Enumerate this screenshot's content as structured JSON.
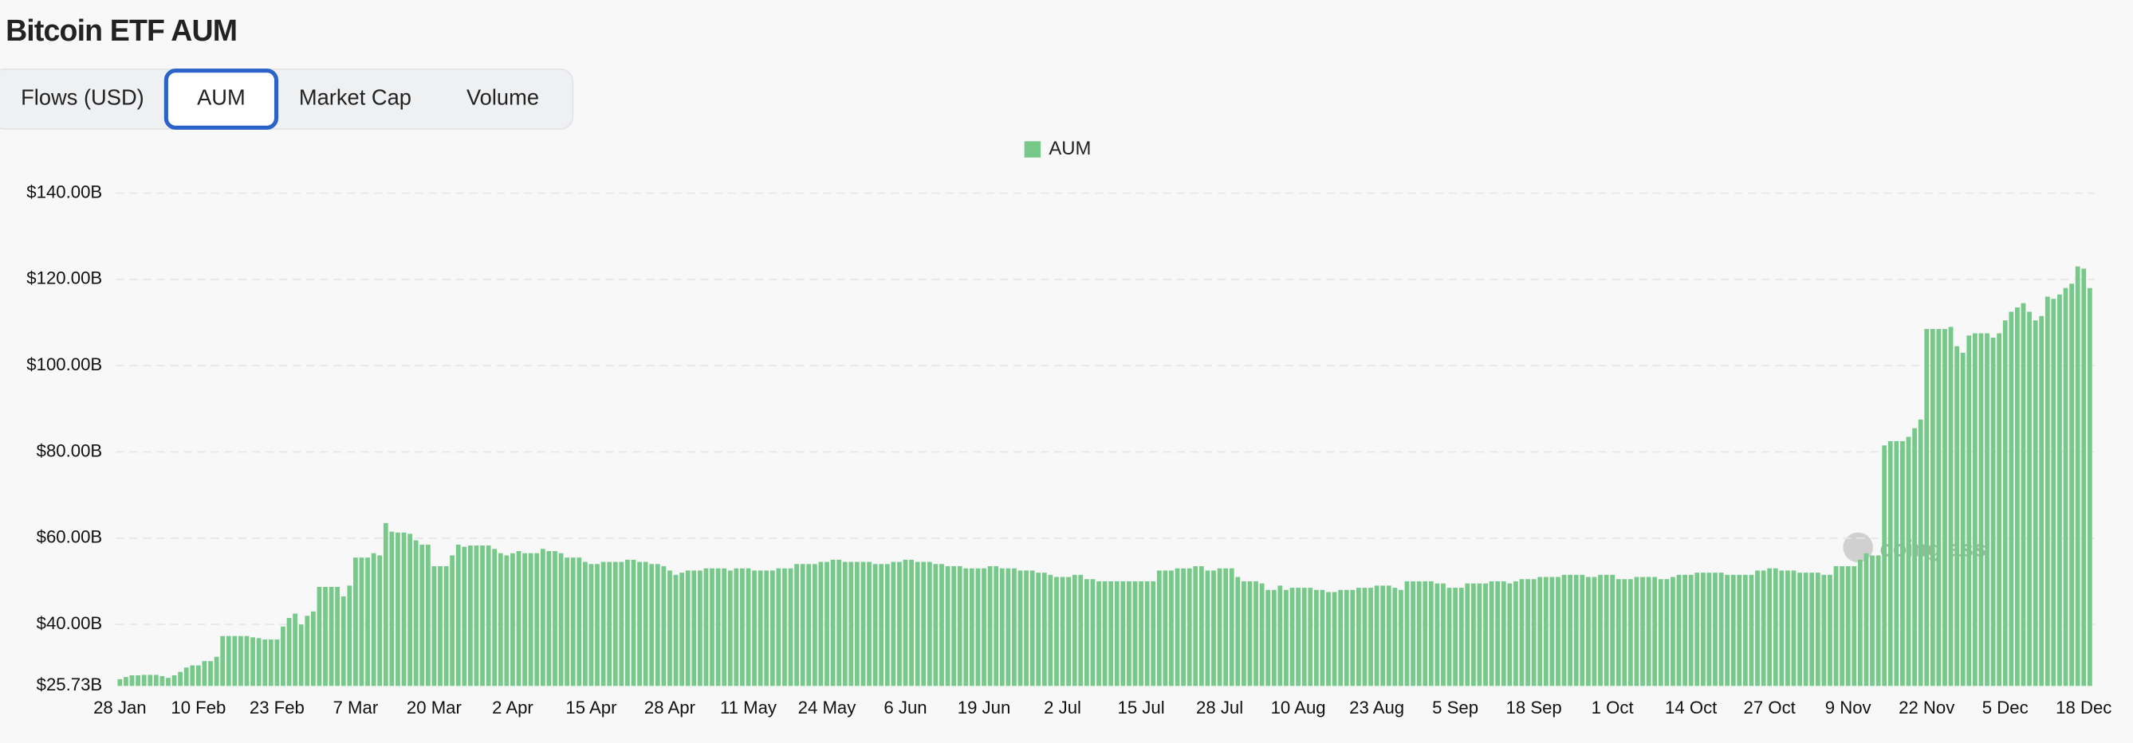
{
  "header": {
    "title": "Bitcoin ETF AUM"
  },
  "tabs": {
    "items": [
      "Flows (USD)",
      "AUM",
      "Market Cap",
      "Volume"
    ],
    "selected": 1
  },
  "chart_data": {
    "type": "bar",
    "watermark": "coinglass",
    "categories": [
      "28 Jan",
      null,
      null,
      null,
      null,
      null,
      null,
      null,
      null,
      null,
      null,
      null,
      null,
      "10 Feb",
      null,
      null,
      null,
      null,
      null,
      null,
      null,
      null,
      null,
      null,
      null,
      null,
      "23 Feb",
      null,
      null,
      null,
      null,
      null,
      null,
      null,
      null,
      null,
      null,
      null,
      null,
      "7 Mar",
      null,
      null,
      null,
      null,
      null,
      null,
      null,
      null,
      null,
      null,
      null,
      null,
      "20 Mar",
      null,
      null,
      null,
      null,
      null,
      null,
      null,
      null,
      null,
      null,
      null,
      null,
      "2 Apr",
      null,
      null,
      null,
      null,
      null,
      null,
      null,
      null,
      null,
      null,
      null,
      null,
      "15 Apr",
      null,
      null,
      null,
      null,
      null,
      null,
      null,
      null,
      null,
      null,
      null,
      null,
      "28 Apr",
      null,
      null,
      null,
      null,
      null,
      null,
      null,
      null,
      null,
      null,
      null,
      null,
      "11 May",
      null,
      null,
      null,
      null,
      null,
      null,
      null,
      null,
      null,
      null,
      null,
      null,
      "24 May",
      null,
      null,
      null,
      null,
      null,
      null,
      null,
      null,
      null,
      null,
      null,
      null,
      "6 Jun",
      null,
      null,
      null,
      null,
      null,
      null,
      null,
      null,
      null,
      null,
      null,
      null,
      "19 Jun",
      null,
      null,
      null,
      null,
      null,
      null,
      null,
      null,
      null,
      null,
      null,
      null,
      "2 Jul",
      null,
      null,
      null,
      null,
      null,
      null,
      null,
      null,
      null,
      null,
      null,
      null,
      "15 Jul",
      null,
      null,
      null,
      null,
      null,
      null,
      null,
      null,
      null,
      null,
      null,
      null,
      "28 Jul",
      null,
      null,
      null,
      null,
      null,
      null,
      null,
      null,
      null,
      null,
      null,
      null,
      "10 Aug",
      null,
      null,
      null,
      null,
      null,
      null,
      null,
      null,
      null,
      null,
      null,
      null,
      "23 Aug",
      null,
      null,
      null,
      null,
      null,
      null,
      null,
      null,
      null,
      null,
      null,
      null,
      "5 Sep",
      null,
      null,
      null,
      null,
      null,
      null,
      null,
      null,
      null,
      null,
      null,
      null,
      "18 Sep",
      null,
      null,
      null,
      null,
      null,
      null,
      null,
      null,
      null,
      null,
      null,
      null,
      "1 Oct",
      null,
      null,
      null,
      null,
      null,
      null,
      null,
      null,
      null,
      null,
      null,
      null,
      "14 Oct",
      null,
      null,
      null,
      null,
      null,
      null,
      null,
      null,
      null,
      null,
      null,
      null,
      "27 Oct",
      null,
      null,
      null,
      null,
      null,
      null,
      null,
      null,
      null,
      null,
      null,
      null,
      "9 Nov",
      null,
      null,
      null,
      null,
      null,
      null,
      null,
      null,
      null,
      null,
      null,
      null,
      "22 Nov",
      null,
      null,
      null,
      null,
      null,
      null,
      null,
      null,
      null,
      null,
      null,
      null,
      "5 Dec",
      null,
      null,
      null,
      null,
      null,
      null,
      null,
      null,
      null,
      null,
      null,
      null,
      "18 Dec",
      null
    ],
    "series": [
      {
        "name": "AUM",
        "color": "#77c98a",
        "values": [
          27.3,
          27.8,
          28.2,
          28.2,
          28.3,
          28.3,
          28.3,
          28.0,
          27.6,
          28.2,
          29.0,
          30.0,
          30.5,
          30.5,
          31.5,
          31.5,
          32.5,
          37.3,
          37.3,
          37.3,
          37.3,
          37.3,
          37.0,
          36.8,
          36.5,
          36.5,
          36.5,
          39.5,
          41.5,
          42.5,
          40.0,
          42.0,
          43.0,
          48.7,
          48.7,
          48.7,
          48.7,
          46.5,
          49.0,
          55.5,
          55.5,
          55.5,
          56.5,
          56.0,
          63.5,
          61.5,
          61.3,
          61.3,
          61.0,
          59.5,
          58.5,
          58.5,
          53.5,
          53.5,
          53.5,
          56.0,
          58.5,
          58.0,
          58.3,
          58.3,
          58.3,
          58.3,
          57.5,
          56.5,
          56.0,
          56.5,
          57.0,
          56.5,
          56.5,
          56.5,
          57.5,
          57.0,
          57.0,
          56.5,
          55.5,
          55.5,
          55.5,
          54.5,
          54.0,
          54.0,
          54.5,
          54.5,
          54.5,
          54.5,
          55.0,
          55.0,
          54.5,
          54.5,
          54.0,
          54.0,
          53.5,
          52.5,
          51.5,
          52.0,
          52.5,
          52.5,
          52.5,
          53.0,
          53.0,
          53.0,
          53.0,
          52.5,
          53.0,
          53.0,
          53.0,
          52.5,
          52.5,
          52.5,
          52.5,
          53.0,
          53.0,
          53.0,
          54.0,
          54.0,
          54.0,
          54.0,
          54.5,
          54.5,
          55.0,
          55.0,
          54.5,
          54.5,
          54.5,
          54.5,
          54.5,
          54.0,
          54.0,
          54.0,
          54.5,
          54.5,
          55.0,
          55.0,
          54.5,
          54.5,
          54.5,
          54.0,
          54.0,
          53.5,
          53.5,
          53.5,
          53.0,
          53.0,
          53.0,
          53.0,
          53.5,
          53.5,
          53.0,
          53.0,
          53.0,
          52.5,
          52.5,
          52.5,
          52.0,
          52.0,
          51.5,
          51.0,
          51.0,
          51.0,
          51.5,
          51.5,
          50.5,
          50.5,
          50.0,
          50.0,
          50.0,
          50.0,
          50.0,
          50.0,
          50.0,
          50.0,
          50.0,
          50.0,
          52.5,
          52.5,
          52.5,
          53.0,
          53.0,
          53.0,
          53.5,
          53.5,
          52.5,
          52.5,
          53.0,
          53.0,
          53.0,
          51.0,
          50.0,
          50.0,
          50.0,
          49.5,
          48.0,
          48.0,
          49.0,
          48.0,
          48.5,
          48.5,
          48.5,
          48.5,
          48.0,
          48.0,
          47.5,
          47.5,
          48.0,
          48.0,
          48.0,
          48.5,
          48.5,
          48.5,
          49.0,
          49.0,
          49.0,
          48.5,
          48.0,
          50.0,
          50.0,
          50.0,
          50.0,
          50.0,
          49.5,
          49.5,
          48.5,
          48.5,
          48.5,
          49.5,
          49.5,
          49.5,
          49.5,
          50.0,
          50.0,
          50.0,
          49.5,
          50.0,
          50.5,
          50.5,
          50.5,
          51.0,
          51.0,
          51.0,
          51.0,
          51.5,
          51.5,
          51.5,
          51.5,
          51.0,
          51.0,
          51.5,
          51.5,
          51.5,
          50.5,
          50.5,
          50.5,
          51.0,
          51.0,
          51.0,
          51.0,
          50.5,
          50.5,
          51.0,
          51.5,
          51.5,
          51.5,
          52.0,
          52.0,
          52.0,
          52.0,
          52.0,
          51.5,
          51.5,
          51.5,
          51.5,
          51.5,
          52.5,
          52.5,
          53.0,
          53.0,
          52.5,
          52.5,
          52.5,
          52.0,
          52.0,
          52.0,
          52.0,
          51.5,
          51.5,
          53.5,
          53.5,
          53.5,
          53.5,
          55.0,
          56.5,
          56.0,
          56.0,
          81.5,
          82.5,
          82.5,
          82.5,
          83.5,
          85.5,
          87.5,
          108.5,
          108.5,
          108.5,
          108.5,
          109.0,
          104.5,
          103.0,
          107.0,
          107.5,
          107.5,
          107.5,
          106.5,
          107.5,
          110.5,
          112.5,
          113.5,
          114.5,
          112.5,
          110.5,
          111.5,
          116.0,
          115.5,
          116.5,
          118.0,
          119.0,
          123.0,
          122.5,
          118.0
        ]
      }
    ],
    "ylim": [
      25.73,
      140
    ],
    "yticks": [
      {
        "value": 25.73,
        "label": "$25.73B"
      },
      {
        "value": 40,
        "label": "$40.00B"
      },
      {
        "value": 60,
        "label": "$60.00B"
      },
      {
        "value": 80,
        "label": "$80.00B"
      },
      {
        "value": 100,
        "label": "$100.00B"
      },
      {
        "value": 120,
        "label": "$120.00B"
      },
      {
        "value": 140,
        "label": "$140.00B"
      }
    ],
    "grid": true
  }
}
